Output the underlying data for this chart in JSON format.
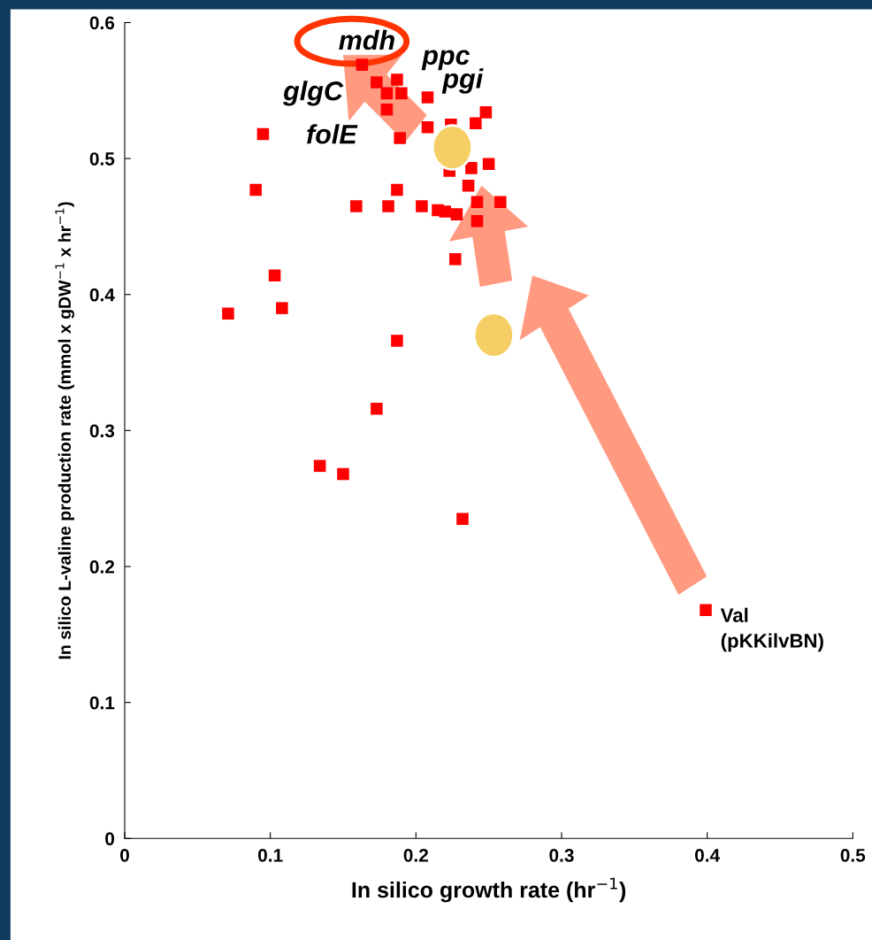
{
  "chart_data": {
    "type": "scatter",
    "xlabel": "In silico growth rate (hr$^{−1}$)",
    "ylabel": "In silico L-valine production rate (mmol x gDW$^{−1}$ x hr$^{−1}$)",
    "x": [
      0.163,
      0.173,
      0.187,
      0.18,
      0.19,
      0.208,
      0.18,
      0.248,
      0.241,
      0.208,
      0.224,
      0.189,
      0.223,
      0.238,
      0.25,
      0.095,
      0.09,
      0.187,
      0.236,
      0.159,
      0.181,
      0.204,
      0.215,
      0.22,
      0.228,
      0.242,
      0.258,
      0.242,
      0.227,
      0.103,
      0.071,
      0.108,
      0.187,
      0.173,
      0.134,
      0.15,
      0.232,
      0.399
    ],
    "values": [
      0.569,
      0.556,
      0.558,
      0.548,
      0.548,
      0.545,
      0.536,
      0.534,
      0.526,
      0.523,
      0.525,
      0.515,
      0.491,
      0.493,
      0.496,
      0.518,
      0.477,
      0.477,
      0.48,
      0.465,
      0.465,
      0.465,
      0.462,
      0.461,
      0.459,
      0.468,
      0.468,
      0.454,
      0.426,
      0.414,
      0.386,
      0.39,
      0.366,
      0.316,
      0.274,
      0.268,
      0.235,
      0.168
    ],
    "color": "#ff0000",
    "marker": "square",
    "xlim": [
      0,
      0.5
    ],
    "xticks": [
      0,
      0.1,
      0.2,
      0.3,
      0.4,
      0.5
    ],
    "ylim": [
      0,
      0.6
    ],
    "yticks": [
      0,
      0.1,
      0.2,
      0.3,
      0.4,
      0.5,
      0.6
    ],
    "grid": false,
    "legend": false,
    "annotations": [
      {
        "text": "mdh",
        "x": 0.163,
        "y": 0.569
      },
      {
        "text": "ppc",
        "x": 0.187,
        "y": 0.558
      },
      {
        "text": "pgi",
        "x": 0.19,
        "y": 0.548
      },
      {
        "text": "glgC",
        "x": 0.18,
        "y": 0.548
      },
      {
        "text": "folE",
        "x": 0.18,
        "y": 0.536
      },
      {
        "text": "Val\n(pKKilvBN)",
        "x": 0.399,
        "y": 0.168
      }
    ]
  }
}
